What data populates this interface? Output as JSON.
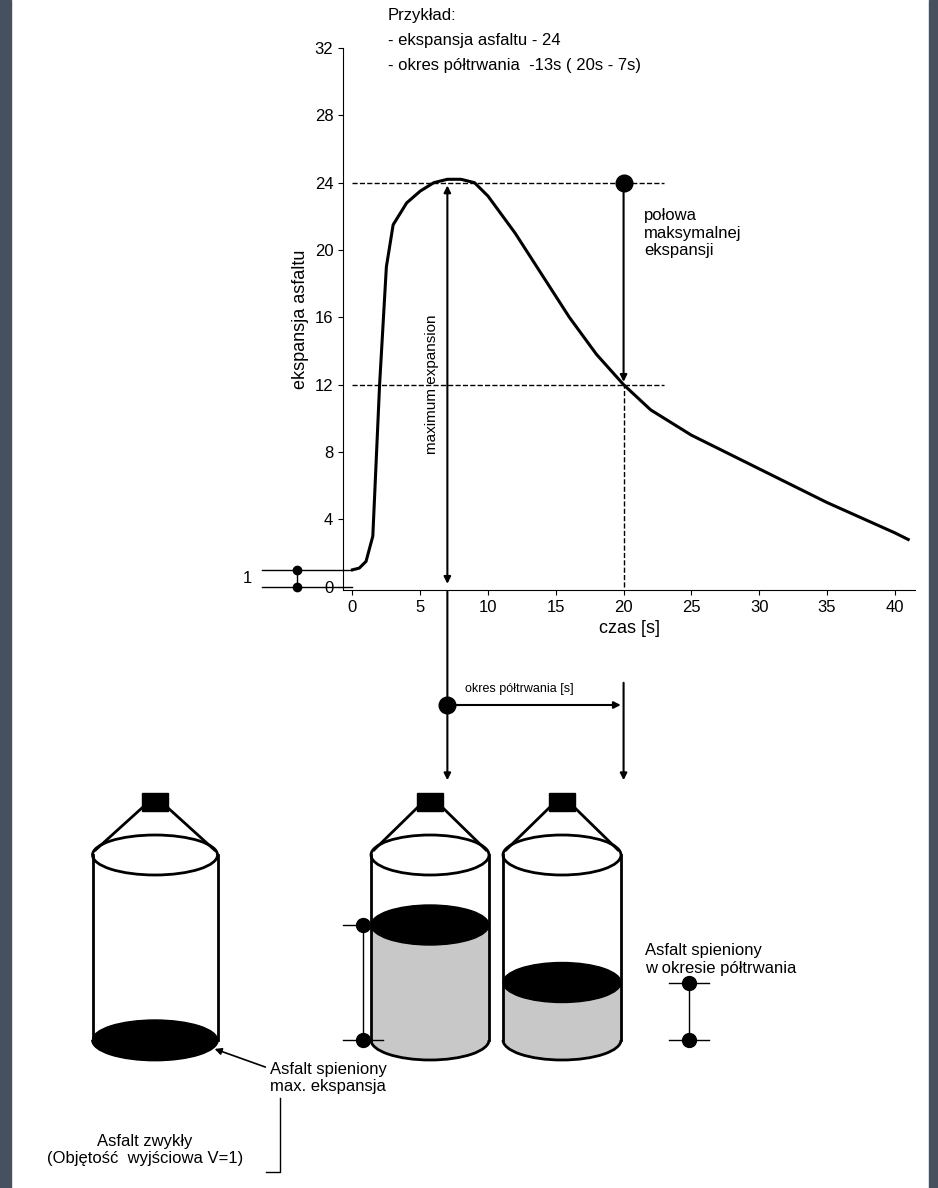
{
  "chart_data": {
    "type": "line",
    "x": [
      0,
      0.5,
      1,
      1.5,
      2,
      2.5,
      3,
      4,
      5,
      6,
      7,
      8,
      9,
      10,
      12,
      14,
      16,
      18,
      20,
      22,
      25,
      30,
      35,
      40,
      41
    ],
    "values": [
      1,
      1.1,
      1.5,
      3,
      12,
      19,
      21.5,
      22.8,
      23.5,
      24,
      24.2,
      24.2,
      24,
      23.2,
      21,
      18.5,
      16,
      13.8,
      12,
      10.5,
      9,
      7,
      5,
      3.2,
      2.8
    ],
    "color": "#000000",
    "xlabel": "czas [s]",
    "ylabel": "ekspansja asfaltu",
    "xlim": [
      -0.7,
      41.5
    ],
    "ylim": [
      -0.2,
      32
    ],
    "xticks": [
      0,
      5,
      10,
      15,
      20,
      25,
      30,
      35,
      40
    ],
    "yticks": [
      0,
      4,
      8,
      12,
      16,
      20,
      24,
      28,
      32
    ],
    "grid": false,
    "max_expansion": {
      "x": 7,
      "y": 24,
      "label": "maximum expansion"
    },
    "half_expansion": {
      "x": 20,
      "y": 12,
      "label": "połowa\nmaksymalnej\nekspansji"
    },
    "initial_volume": {
      "y": 1,
      "label": "1"
    },
    "half_life_label": "okres półtrwania [s]",
    "example": {
      "title": "Przykład:",
      "lines": [
        "- ekspansja asfaltu - 24",
        "- okres półtrwania  -13s ( 20s - 7s)"
      ]
    }
  },
  "diagram": {
    "plain": "Asfalt zwykły\n(Objętość  wyjściowa V=1)",
    "foamed_max": "Asfalt spieniony\nmax. ekspansja",
    "foamed_half": "Asfalt spieniony\nw okresie półtrwania"
  }
}
